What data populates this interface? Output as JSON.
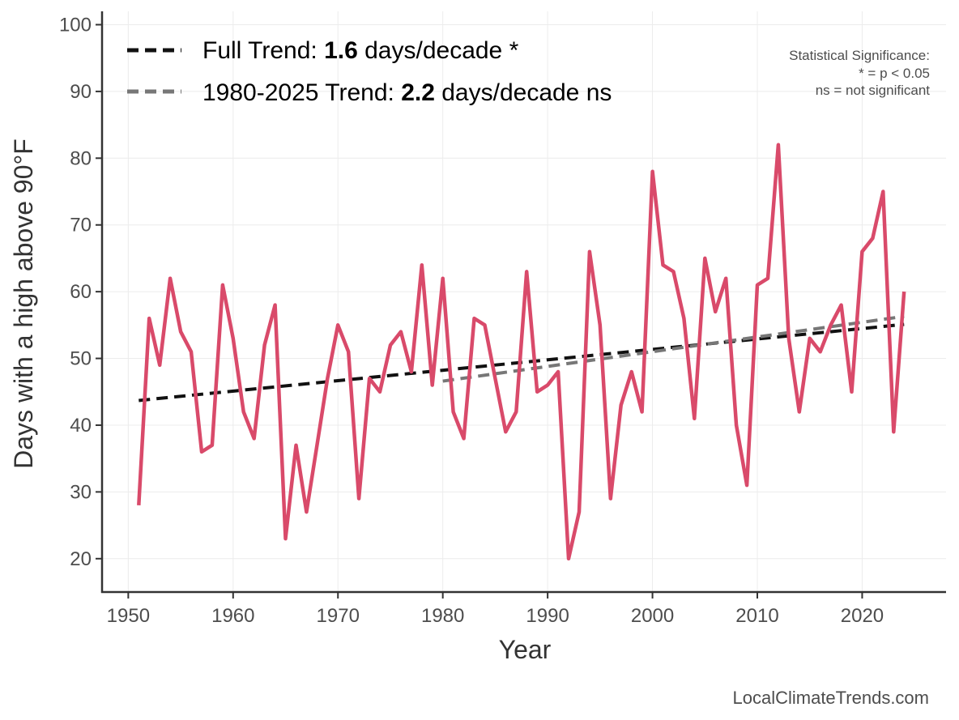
{
  "chart_data": {
    "type": "line",
    "xlabel": "Year",
    "ylabel": "Days with a high above 90°F",
    "xlim": [
      1947.5,
      2028
    ],
    "ylim": [
      15,
      102
    ],
    "xticks": [
      1950,
      1960,
      1970,
      1980,
      1990,
      2000,
      2010,
      2020
    ],
    "yticks": [
      20,
      30,
      40,
      50,
      60,
      70,
      80,
      90,
      100
    ],
    "grid": true,
    "series": [
      {
        "name": "Days with a high above 90°F",
        "color": "#d94a6a",
        "x": [
          1951,
          1952,
          1953,
          1954,
          1955,
          1956,
          1957,
          1958,
          1959,
          1960,
          1961,
          1962,
          1963,
          1964,
          1965,
          1966,
          1967,
          1968,
          1969,
          1970,
          1971,
          1972,
          1973,
          1974,
          1975,
          1976,
          1977,
          1978,
          1979,
          1980,
          1981,
          1982,
          1983,
          1984,
          1985,
          1986,
          1987,
          1988,
          1989,
          1990,
          1991,
          1992,
          1993,
          1994,
          1995,
          1996,
          1997,
          1998,
          1999,
          2000,
          2001,
          2002,
          2003,
          2004,
          2005,
          2006,
          2007,
          2008,
          2009,
          2010,
          2011,
          2012,
          2013,
          2014,
          2015,
          2016,
          2017,
          2018,
          2019,
          2020,
          2021,
          2022,
          2023,
          2024
        ],
        "values": [
          28,
          56,
          49,
          62,
          54,
          51,
          36,
          37,
          61,
          53,
          42,
          38,
          52,
          58,
          23,
          37,
          27,
          37,
          47,
          55,
          51,
          29,
          47,
          45,
          52,
          54,
          48,
          64,
          46,
          62,
          42,
          38,
          56,
          55,
          47,
          39,
          42,
          63,
          45,
          46,
          48,
          20,
          27,
          66,
          55,
          29,
          43,
          48,
          42,
          78,
          64,
          63,
          56,
          41,
          65,
          57,
          62,
          40,
          31,
          61,
          62,
          82,
          53,
          42,
          53,
          51,
          55,
          58,
          45,
          66,
          68,
          75,
          39,
          60
        ]
      }
    ],
    "trends": [
      {
        "name": "Full Trend",
        "color": "#111111",
        "start": {
          "x": 1951,
          "y": 43.7
        },
        "end": {
          "x": 2024,
          "y": 55.1
        }
      },
      {
        "name": "1980-2025 Trend",
        "color": "#777777",
        "start": {
          "x": 1980,
          "y": 46.6
        },
        "end": {
          "x": 2024,
          "y": 56.3
        }
      }
    ],
    "legend": [
      {
        "prefix": "Full Trend: ",
        "value": "1.6",
        "suffix": " days/decade *",
        "color": "#111111"
      },
      {
        "prefix": "1980-2025 Trend: ",
        "value": "2.2",
        "suffix": " days/decade ns",
        "color": "#777777"
      }
    ],
    "significance_note": [
      "Statistical Significance:",
      "* = p < 0.05",
      "ns = not significant"
    ],
    "credit": "LocalClimateTrends.com"
  }
}
